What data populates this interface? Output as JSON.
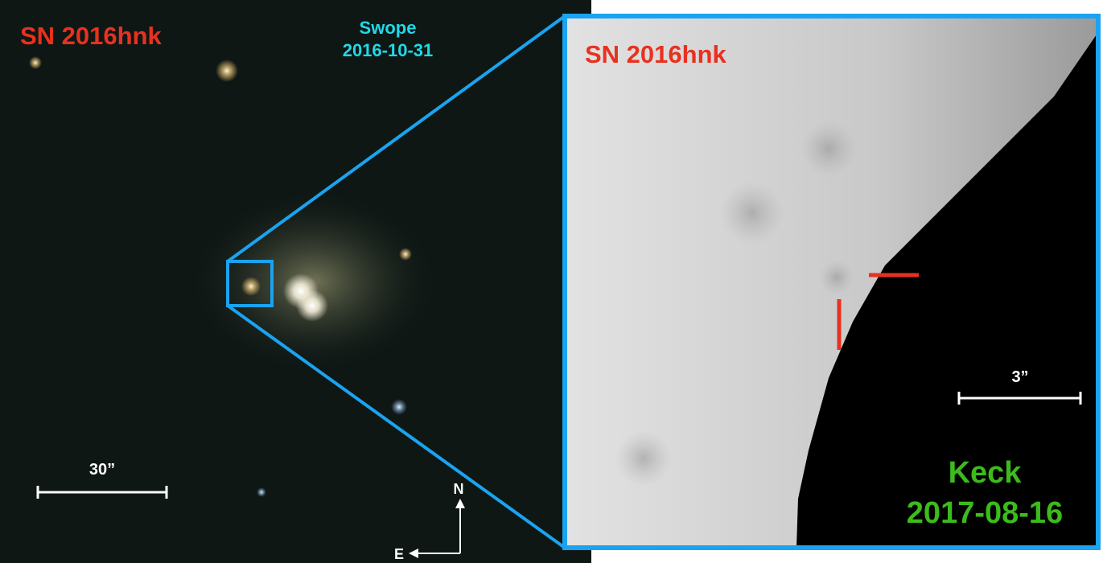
{
  "left": {
    "title": "SN 2016hnk",
    "telescope": "Swope",
    "date": "2016-10-31",
    "scale": "30”"
  },
  "compass": {
    "north": "N",
    "east": "E"
  },
  "right": {
    "title": "SN 2016hnk",
    "scale": "3”",
    "telescope": "Keck",
    "date": "2017-08-16"
  }
}
